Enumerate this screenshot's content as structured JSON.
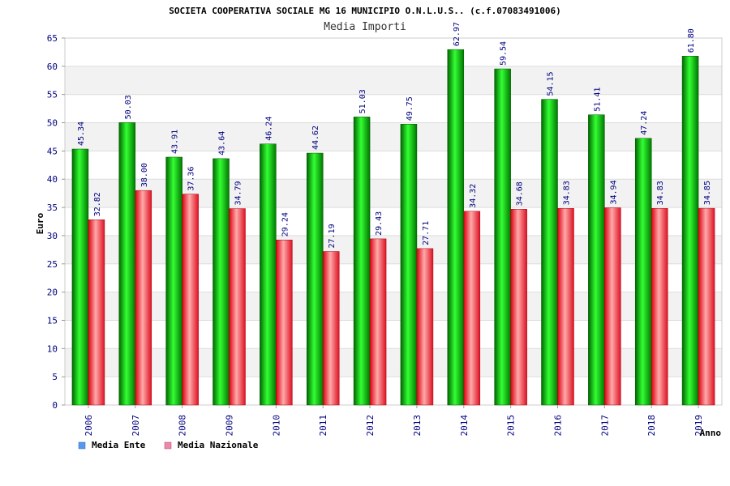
{
  "chart_data": {
    "type": "bar",
    "title": "SOCIETA COOPERATIVA SOCIALE MG 16 MUNICIPIO O.N.L.U.S.. (c.f.07083491006)",
    "subtitle": "Media Importi",
    "xlabel": "Anno",
    "ylabel": "Euro",
    "ylim": [
      0,
      65
    ],
    "yticks": [
      "0",
      "5",
      "10",
      "15",
      "20",
      "25",
      "30",
      "35",
      "40",
      "45",
      "50",
      "55",
      "60",
      "65"
    ],
    "categories": [
      "2006",
      "2007",
      "2008",
      "2009",
      "2010",
      "2011",
      "2012",
      "2013",
      "2014",
      "2015",
      "2016",
      "2017",
      "2018",
      "2019"
    ],
    "series": [
      {
        "name": "Media Ente",
        "values": [
          45.34,
          50.03,
          43.91,
          43.64,
          46.24,
          44.62,
          51.03,
          49.75,
          62.97,
          59.54,
          54.15,
          51.41,
          47.24,
          61.8
        ],
        "labels": [
          "45.34",
          "50.03",
          "43.91",
          "43.64",
          "46.24",
          "44.62",
          "51.03",
          "49.75",
          "62.97",
          "59.54",
          "54.15",
          "51.41",
          "47.24",
          "61.80"
        ],
        "color": "#00aa00"
      },
      {
        "name": "Media Nazionale",
        "values": [
          32.82,
          38.0,
          37.36,
          34.79,
          29.24,
          27.19,
          29.43,
          27.71,
          34.32,
          34.68,
          34.83,
          34.94,
          34.83,
          34.85
        ],
        "labels": [
          "32.82",
          "38.00",
          "37.36",
          "34.79",
          "29.24",
          "27.19",
          "29.43",
          "27.71",
          "34.32",
          "34.68",
          "34.83",
          "34.94",
          "34.83",
          "34.85"
        ],
        "color": "#ee2233"
      }
    ],
    "legend": [
      {
        "label": "Media Ente",
        "color": "#5599ee"
      },
      {
        "label": "Media Nazionale",
        "color": "#ee88aa"
      }
    ],
    "legend_position": "bottom-left",
    "grid": true,
    "colors": {
      "axis_text": "#000080",
      "band": "#f2f2f2"
    }
  }
}
